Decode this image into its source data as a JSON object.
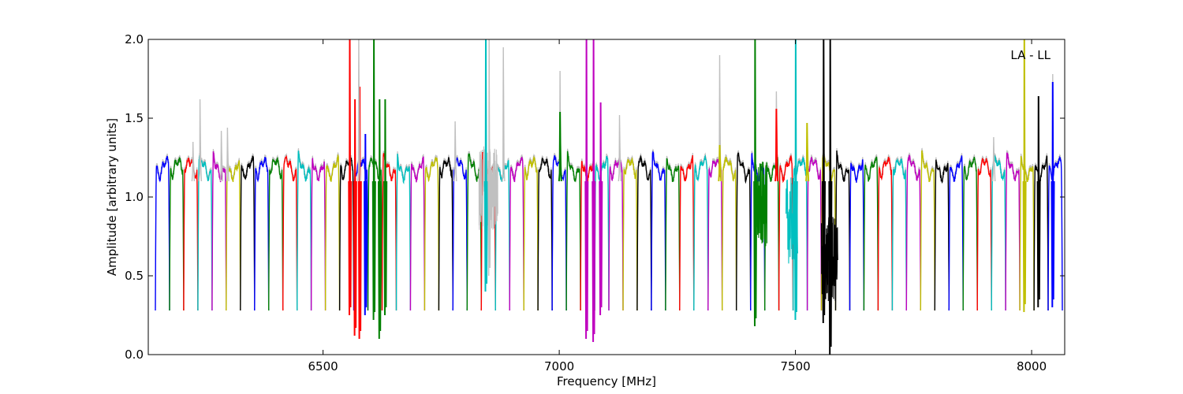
{
  "chart_data": {
    "type": "line",
    "title": "",
    "xlabel": "Frequency [MHz]",
    "ylabel": "Amplitude [arbitrary units]",
    "xlim": [
      6130,
      8070
    ],
    "ylim": [
      0.0,
      2.0
    ],
    "xticks": [
      {
        "value": 6500,
        "label": "6500"
      },
      {
        "value": 7000,
        "label": "7000"
      },
      {
        "value": 7500,
        "label": "7500"
      },
      {
        "value": 8000,
        "label": "8000"
      }
    ],
    "yticks": [
      {
        "value": 0.0,
        "label": "0.0"
      },
      {
        "value": 0.5,
        "label": "0.5"
      },
      {
        "value": 1.0,
        "label": "1.0"
      },
      {
        "value": 1.5,
        "label": "1.5"
      },
      {
        "value": 2.0,
        "label": "2.0"
      }
    ],
    "annotation": "LA - LL",
    "annotation_position": "top-right",
    "grid": false,
    "color_cycle": [
      "#0000ff",
      "#008000",
      "#ff0000",
      "#00bfbf",
      "#bf00bf",
      "#bfbf00",
      "#000000"
    ],
    "background_series_color": "#c0c0c0",
    "channels": {
      "first_center_mhz": 6160,
      "spacing_mhz": 30,
      "count": 64,
      "passband_level": 1.18,
      "edge_min": 0.28
    },
    "spikes": [
      {
        "x": 6225,
        "peak": 1.35,
        "color": "#c0c0c0"
      },
      {
        "x": 6240,
        "peak": 1.62,
        "color": "#c0c0c0"
      },
      {
        "x": 6285,
        "peak": 1.42,
        "color": "#c0c0c0"
      },
      {
        "x": 6298,
        "peak": 1.44,
        "color": "#c0c0c0"
      },
      {
        "x": 6557,
        "low": 0.25,
        "peak": 2.0,
        "color": "#ff0000"
      },
      {
        "x": 6568,
        "low": 0.12,
        "peak": 1.62,
        "color": "#ff0000"
      },
      {
        "x": 6578,
        "low": 0.1,
        "peak": 1.7,
        "color": "#ff0000"
      },
      {
        "x": 6576,
        "peak": 2.0,
        "color": "#c0c0c0"
      },
      {
        "x": 6590,
        "low": 0.25,
        "peak": 1.4,
        "color": "#0000ff"
      },
      {
        "x": 6608,
        "low": 0.22,
        "peak": 2.0,
        "color": "#008000"
      },
      {
        "x": 6620,
        "low": 0.1,
        "peak": 1.62,
        "color": "#008000"
      },
      {
        "x": 6632,
        "low": 0.25,
        "peak": 1.62,
        "color": "#008000"
      },
      {
        "x": 6780,
        "peak": 1.48,
        "color": "#c0c0c0"
      },
      {
        "x": 6845,
        "low": 0.4,
        "peak": 2.0,
        "color": "#00bfbf"
      },
      {
        "x": 6852,
        "low": 0.5,
        "peak": 2.0,
        "color": "#c0c0c0"
      },
      {
        "x": 6882,
        "peak": 1.95,
        "color": "#c0c0c0"
      },
      {
        "x": 7002,
        "peak": 1.8,
        "color": "#c0c0c0"
      },
      {
        "x": 7002,
        "peak": 1.54,
        "color": "#008000"
      },
      {
        "x": 7058,
        "low": 0.1,
        "peak": 2.0,
        "color": "#bf00bf"
      },
      {
        "x": 7073,
        "low": 0.08,
        "peak": 2.0,
        "color": "#bf00bf"
      },
      {
        "x": 7088,
        "low": 0.25,
        "peak": 1.6,
        "color": "#bf00bf"
      },
      {
        "x": 7128,
        "peak": 1.52,
        "color": "#c0c0c0"
      },
      {
        "x": 7340,
        "peak": 1.9,
        "color": "#c0c0c0"
      },
      {
        "x": 7340,
        "peak": 1.33,
        "color": "#bfbf00"
      },
      {
        "x": 7415,
        "low": 0.18,
        "peak": 2.0,
        "color": "#008000"
      },
      {
        "x": 7460,
        "peak": 1.67,
        "color": "#c0c0c0"
      },
      {
        "x": 7460,
        "peak": 1.56,
        "color": "#ff0000"
      },
      {
        "x": 7501,
        "low": 0.22,
        "peak": 2.0,
        "color": "#00bfbf"
      },
      {
        "x": 7525,
        "peak": 1.47,
        "color": "#bfbf00"
      },
      {
        "x": 7560,
        "low": 0.2,
        "peak": 2.0,
        "color": "#000000"
      },
      {
        "x": 7574,
        "low": 0.0,
        "peak": 2.0,
        "color": "#000000"
      },
      {
        "x": 7920,
        "peak": 1.38,
        "color": "#c0c0c0"
      },
      {
        "x": 7985,
        "low": 0.27,
        "peak": 2.0,
        "color": "#bfbf00"
      },
      {
        "x": 8015,
        "low": 0.3,
        "peak": 1.64,
        "color": "#000000"
      },
      {
        "x": 8045,
        "low": 0.3,
        "peak": 1.78,
        "color": "#c0c0c0"
      },
      {
        "x": 8045,
        "low": 0.3,
        "peak": 1.73,
        "color": "#0000ff"
      }
    ],
    "noisy_regions": [
      {
        "x_start": 6830,
        "x_end": 6870,
        "level": 1.05,
        "color": "#c0c0c0"
      },
      {
        "x_start": 7415,
        "x_end": 7440,
        "level": 0.95,
        "color": "#008000"
      },
      {
        "x_start": 7480,
        "x_end": 7505,
        "level": 0.85,
        "color": "#00bfbf"
      },
      {
        "x_start": 7555,
        "x_end": 7590,
        "level": 0.6,
        "color": "#000000"
      }
    ]
  }
}
